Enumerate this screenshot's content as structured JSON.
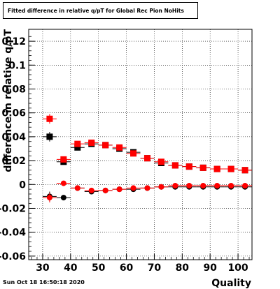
{
  "title": "Fitted difference in relative q/pT for Global Rec Pion NoHits",
  "timestamp": "Sun Oct 18 16:50:18 2020",
  "chart_data": {
    "type": "scatter",
    "title": "Fitted difference in relative q/pT for Global Rec Pion NoHits",
    "xlabel": "Quality",
    "ylabel": "difference in relative q/pT",
    "xlim": [
      25,
      105
    ],
    "ylim": [
      -0.063,
      0.13
    ],
    "grid": true,
    "x_ticks": [
      30,
      40,
      50,
      60,
      70,
      80,
      90,
      100
    ],
    "x_tick_labels": [
      "30",
      "40",
      "50",
      "60",
      "70",
      "80",
      "90",
      "100"
    ],
    "y_ticks": [
      -0.06,
      -0.04,
      -0.02,
      0,
      0.02,
      0.04,
      0.06,
      0.08,
      0.1,
      0.12
    ],
    "y_tick_labels": [
      "-0.06",
      "-0.04",
      "-0.02",
      "0",
      "0.02",
      "0.04",
      "0.06",
      "0.08",
      "0.1",
      "0.12"
    ],
    "series": [
      {
        "marker": "square",
        "color": "#000000",
        "x": [
          32.5,
          37.5,
          42.5,
          47.5,
          52.5,
          57.5,
          62.5,
          67.5,
          72.5,
          77.5,
          82.5,
          87.5,
          92.5,
          97.5,
          102.5
        ],
        "y": [
          0.04,
          0.019,
          0.031,
          0.034,
          0.033,
          0.03,
          0.027,
          0.022,
          0.018,
          0.016,
          0.015,
          0.014,
          0.013,
          0.013,
          0.012
        ],
        "yerr": [
          0.004,
          0.002,
          0.001,
          0.001,
          0.001,
          0.001,
          0.001,
          0.001,
          0.001,
          0.001,
          0.001,
          0.001,
          0.001,
          0.001,
          0.001
        ]
      },
      {
        "marker": "circle",
        "color": "#000000",
        "x": [
          32.5,
          37.5,
          42.5,
          47.5,
          52.5,
          57.5,
          62.5,
          67.5,
          72.5,
          77.5,
          82.5,
          87.5,
          92.5,
          97.5,
          102.5
        ],
        "y": [
          -0.01,
          -0.011,
          -0.003,
          -0.006,
          -0.005,
          -0.004,
          -0.004,
          -0.003,
          -0.002,
          -0.002,
          -0.002,
          -0.002,
          -0.002,
          -0.002,
          -0.002
        ],
        "yerr": [
          0.004,
          0.002,
          0.002,
          0.002,
          0.001,
          0.001,
          0.001,
          0.001,
          0.001,
          0.001,
          0.001,
          0.001,
          0.001,
          0.001,
          0.001
        ]
      },
      {
        "marker": "square",
        "color": "#ff0000",
        "x": [
          32.5,
          37.5,
          42.5,
          47.5,
          52.5,
          57.5,
          62.5,
          67.5,
          72.5,
          77.5,
          82.5,
          87.5,
          92.5,
          97.5,
          102.5
        ],
        "y": [
          0.055,
          0.021,
          0.034,
          0.035,
          0.033,
          0.031,
          0.026,
          0.022,
          0.019,
          0.016,
          0.015,
          0.014,
          0.013,
          0.013,
          0.012
        ],
        "yerr": [
          0.004,
          0.002,
          0.001,
          0.001,
          0.001,
          0.001,
          0.001,
          0.001,
          0.001,
          0.001,
          0.001,
          0.001,
          0.001,
          0.001,
          0.001
        ]
      },
      {
        "marker": "circle",
        "color": "#ff0000",
        "x": [
          32.5,
          37.5,
          42.5,
          47.5,
          52.5,
          57.5,
          62.5,
          67.5,
          72.5,
          77.5,
          82.5,
          87.5,
          92.5,
          97.5,
          102.5
        ],
        "y": [
          -0.011,
          0.001,
          -0.003,
          -0.005,
          -0.005,
          -0.004,
          -0.003,
          -0.003,
          -0.002,
          -0.001,
          -0.001,
          -0.001,
          -0.001,
          -0.001,
          -0.001
        ],
        "yerr": [
          0.004,
          0.002,
          0.002,
          0.002,
          0.001,
          0.001,
          0.001,
          0.001,
          0.001,
          0.001,
          0.001,
          0.001,
          0.001,
          0.001,
          0.001
        ]
      }
    ]
  }
}
